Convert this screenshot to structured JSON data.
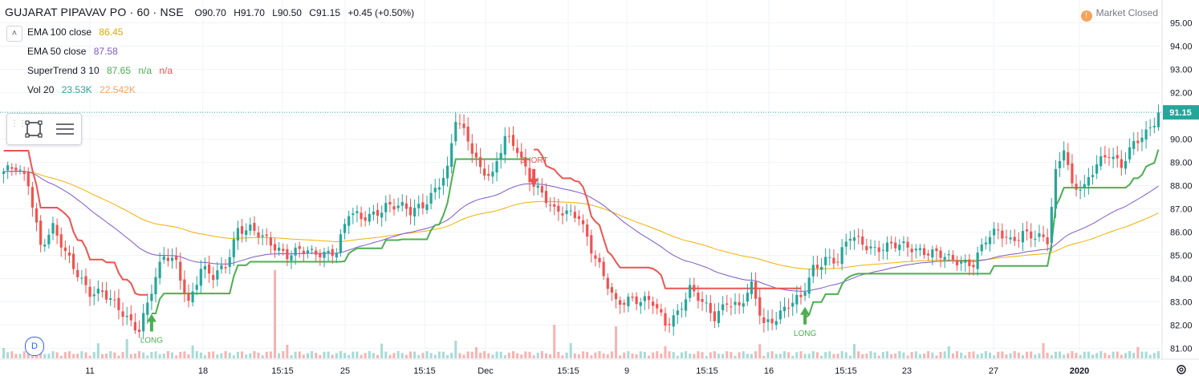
{
  "header": {
    "symbol": "GUJARAT PIPAVAV PO · 60 · NSE",
    "ohlc": {
      "open": "O90.70",
      "high": "H91.70",
      "low": "L90.50",
      "close": "C91.15",
      "change": "+0.45 (+0.50%)"
    }
  },
  "indicators": [
    {
      "name": "EMA 100 close",
      "value": "86.45",
      "color": "#e0a800"
    },
    {
      "name": "EMA 50 close",
      "value": "87.58",
      "color": "#7e57c2"
    },
    {
      "name": "SuperTrend 3 10",
      "value": "87.65",
      "v2": "n/a",
      "v3": "n/a",
      "color": "#4caf50"
    },
    {
      "name": "Vol 20",
      "value": "23.53K",
      "v2": "22.542K",
      "color": "#26a69a"
    }
  ],
  "market_status": {
    "icon": "exclamation-icon",
    "label": "Market Closed"
  },
  "last_price_label": "91.15",
  "d_button": "D",
  "colors": {
    "up": "#26a69a",
    "down": "#ef5350",
    "st_up": "#4caf50",
    "st_down": "#ef5350",
    "ema50": "#7e57c2",
    "ema100": "#f0b000",
    "grid": "#f0f3fa"
  },
  "chart_data": {
    "type": "candlestick",
    "y_axis": {
      "ticks": [
        "81.00",
        "82.00",
        "83.00",
        "84.00",
        "85.00",
        "86.00",
        "87.00",
        "88.00",
        "89.00",
        "90.00",
        "91.00",
        "92.00",
        "93.00",
        "94.00",
        "95.00"
      ],
      "range": [
        80.5,
        95.2
      ]
    },
    "x_axis": {
      "ticks": [
        "11",
        "18",
        "15:15",
        "25",
        "15:15",
        "Dec",
        "15:15",
        "9",
        "15:15",
        "16",
        "15:15",
        "23",
        "27",
        "2020"
      ]
    },
    "annotations": [
      {
        "text": "LONG",
        "type": "buy",
        "x_index": 36,
        "price": 82.0
      },
      {
        "text": "SHORT",
        "type": "sell",
        "x_index": 129,
        "price": 88.3
      },
      {
        "text": "LONG",
        "type": "buy",
        "x_index": 195,
        "price": 82.3
      }
    ],
    "last_price": 91.15,
    "keypoints": [
      [
        0,
        88.6
      ],
      [
        3,
        88.7
      ],
      [
        6,
        88.1
      ],
      [
        9,
        85.5
      ],
      [
        12,
        86.2
      ],
      [
        15,
        85.0
      ],
      [
        18,
        84.2
      ],
      [
        21,
        83.5
      ],
      [
        24,
        83.4
      ],
      [
        27,
        82.8
      ],
      [
        30,
        82.3
      ],
      [
        33,
        81.9
      ],
      [
        36,
        83.5
      ],
      [
        39,
        84.9
      ],
      [
        42,
        84.7
      ],
      [
        45,
        83.0
      ],
      [
        48,
        84.4
      ],
      [
        51,
        84.0
      ],
      [
        54,
        84.6
      ],
      [
        57,
        86.2
      ],
      [
        60,
        86.1
      ],
      [
        63,
        85.7
      ],
      [
        66,
        85.4
      ],
      [
        69,
        85.1
      ],
      [
        72,
        85.2
      ],
      [
        75,
        85.0
      ],
      [
        78,
        85.1
      ],
      [
        81,
        85.3
      ],
      [
        84,
        86.8
      ],
      [
        87,
        86.5
      ],
      [
        90,
        86.8
      ],
      [
        93,
        87.2
      ],
      [
        96,
        87.1
      ],
      [
        99,
        86.8
      ],
      [
        102,
        87.2
      ],
      [
        105,
        87.9
      ],
      [
        108,
        88.6
      ],
      [
        110,
        90.8
      ],
      [
        113,
        90.0
      ],
      [
        116,
        88.8
      ],
      [
        119,
        88.4
      ],
      [
        122,
        90.0
      ],
      [
        125,
        89.6
      ],
      [
        128,
        88.4
      ],
      [
        131,
        87.6
      ],
      [
        134,
        86.8
      ],
      [
        137,
        86.9
      ],
      [
        140,
        86.8
      ],
      [
        143,
        85.2
      ],
      [
        146,
        84.0
      ],
      [
        149,
        83.0
      ],
      [
        152,
        83.2
      ],
      [
        155,
        83.0
      ],
      [
        158,
        82.9
      ],
      [
        161,
        82.1
      ],
      [
        164,
        82.6
      ],
      [
        167,
        83.5
      ],
      [
        170,
        82.9
      ],
      [
        173,
        82.4
      ],
      [
        176,
        83.1
      ],
      [
        179,
        82.7
      ],
      [
        182,
        83.6
      ],
      [
        185,
        82.1
      ],
      [
        188,
        82.4
      ],
      [
        191,
        82.8
      ],
      [
        194,
        83.1
      ],
      [
        197,
        84.5
      ],
      [
        200,
        84.9
      ],
      [
        203,
        84.7
      ],
      [
        206,
        85.8
      ],
      [
        209,
        85.6
      ],
      [
        212,
        85.3
      ],
      [
        215,
        85.3
      ],
      [
        218,
        85.4
      ],
      [
        221,
        85.4
      ],
      [
        224,
        85.2
      ],
      [
        227,
        85.0
      ],
      [
        230,
        84.8
      ],
      [
        233,
        84.8
      ],
      [
        236,
        84.7
      ],
      [
        239,
        85.6
      ],
      [
        242,
        86.0
      ],
      [
        245,
        85.7
      ],
      [
        248,
        86.0
      ],
      [
        251,
        85.7
      ],
      [
        254,
        85.6
      ],
      [
        256,
        88.6
      ],
      [
        258,
        89.8
      ],
      [
        260,
        88.0
      ],
      [
        263,
        87.8
      ],
      [
        266,
        88.9
      ],
      [
        269,
        89.5
      ],
      [
        272,
        88.9
      ],
      [
        275,
        89.7
      ],
      [
        278,
        90.2
      ],
      [
        281,
        91.15
      ]
    ]
  }
}
